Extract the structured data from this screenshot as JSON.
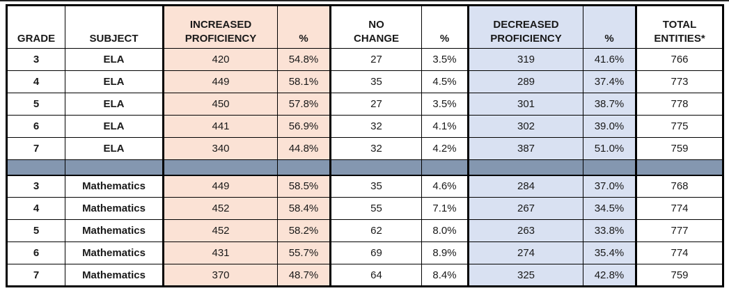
{
  "table": {
    "columns": [
      {
        "key": "grade",
        "label": "GRADE"
      },
      {
        "key": "subject",
        "label": "SUBJECT"
      },
      {
        "key": "increased",
        "label": "INCREASED\nPROFICIENCY"
      },
      {
        "key": "increased_pct",
        "label": "%"
      },
      {
        "key": "no_change",
        "label": "NO\nCHANGE"
      },
      {
        "key": "no_change_pct",
        "label": "%"
      },
      {
        "key": "decreased",
        "label": "DECREASED\nPROFICIENCY"
      },
      {
        "key": "decreased_pct",
        "label": "%"
      },
      {
        "key": "total",
        "label": "TOTAL\nENTITIES*"
      }
    ],
    "ela_rows": [
      {
        "grade": "3",
        "subject": "ELA",
        "increased": "420",
        "increased_pct": "54.8%",
        "no_change": "27",
        "no_change_pct": "3.5%",
        "decreased": "319",
        "decreased_pct": "41.6%",
        "total": "766"
      },
      {
        "grade": "4",
        "subject": "ELA",
        "increased": "449",
        "increased_pct": "58.1%",
        "no_change": "35",
        "no_change_pct": "4.5%",
        "decreased": "289",
        "decreased_pct": "37.4%",
        "total": "773"
      },
      {
        "grade": "5",
        "subject": "ELA",
        "increased": "450",
        "increased_pct": "57.8%",
        "no_change": "27",
        "no_change_pct": "3.5%",
        "decreased": "301",
        "decreased_pct": "38.7%",
        "total": "778"
      },
      {
        "grade": "6",
        "subject": "ELA",
        "increased": "441",
        "increased_pct": "56.9%",
        "no_change": "32",
        "no_change_pct": "4.1%",
        "decreased": "302",
        "decreased_pct": "39.0%",
        "total": "775"
      },
      {
        "grade": "7",
        "subject": "ELA",
        "increased": "340",
        "increased_pct": "44.8%",
        "no_change": "32",
        "no_change_pct": "4.2%",
        "decreased": "387",
        "decreased_pct": "51.0%",
        "total": "759"
      }
    ],
    "math_rows": [
      {
        "grade": "3",
        "subject": "Mathematics",
        "increased": "449",
        "increased_pct": "58.5%",
        "no_change": "35",
        "no_change_pct": "4.6%",
        "decreased": "284",
        "decreased_pct": "37.0%",
        "total": "768"
      },
      {
        "grade": "4",
        "subject": "Mathematics",
        "increased": "452",
        "increased_pct": "58.4%",
        "no_change": "55",
        "no_change_pct": "7.1%",
        "decreased": "267",
        "decreased_pct": "34.5%",
        "total": "774"
      },
      {
        "grade": "5",
        "subject": "Mathematics",
        "increased": "452",
        "increased_pct": "58.2%",
        "no_change": "62",
        "no_change_pct": "8.0%",
        "decreased": "263",
        "decreased_pct": "33.8%",
        "total": "777"
      },
      {
        "grade": "6",
        "subject": "Mathematics",
        "increased": "431",
        "increased_pct": "55.7%",
        "no_change": "69",
        "no_change_pct": "8.9%",
        "decreased": "274",
        "decreased_pct": "35.4%",
        "total": "774"
      },
      {
        "grade": "7",
        "subject": "Mathematics",
        "increased": "370",
        "increased_pct": "48.7%",
        "no_change": "64",
        "no_change_pct": "8.4%",
        "decreased": "325",
        "decreased_pct": "42.8%",
        "total": "759"
      }
    ]
  },
  "colors": {
    "increased_fill": "#FBE2D5",
    "decreased_fill": "#D9E1F2",
    "separator_fill": "#8497B0",
    "border": "#000000",
    "background": "#FFFFFF"
  }
}
